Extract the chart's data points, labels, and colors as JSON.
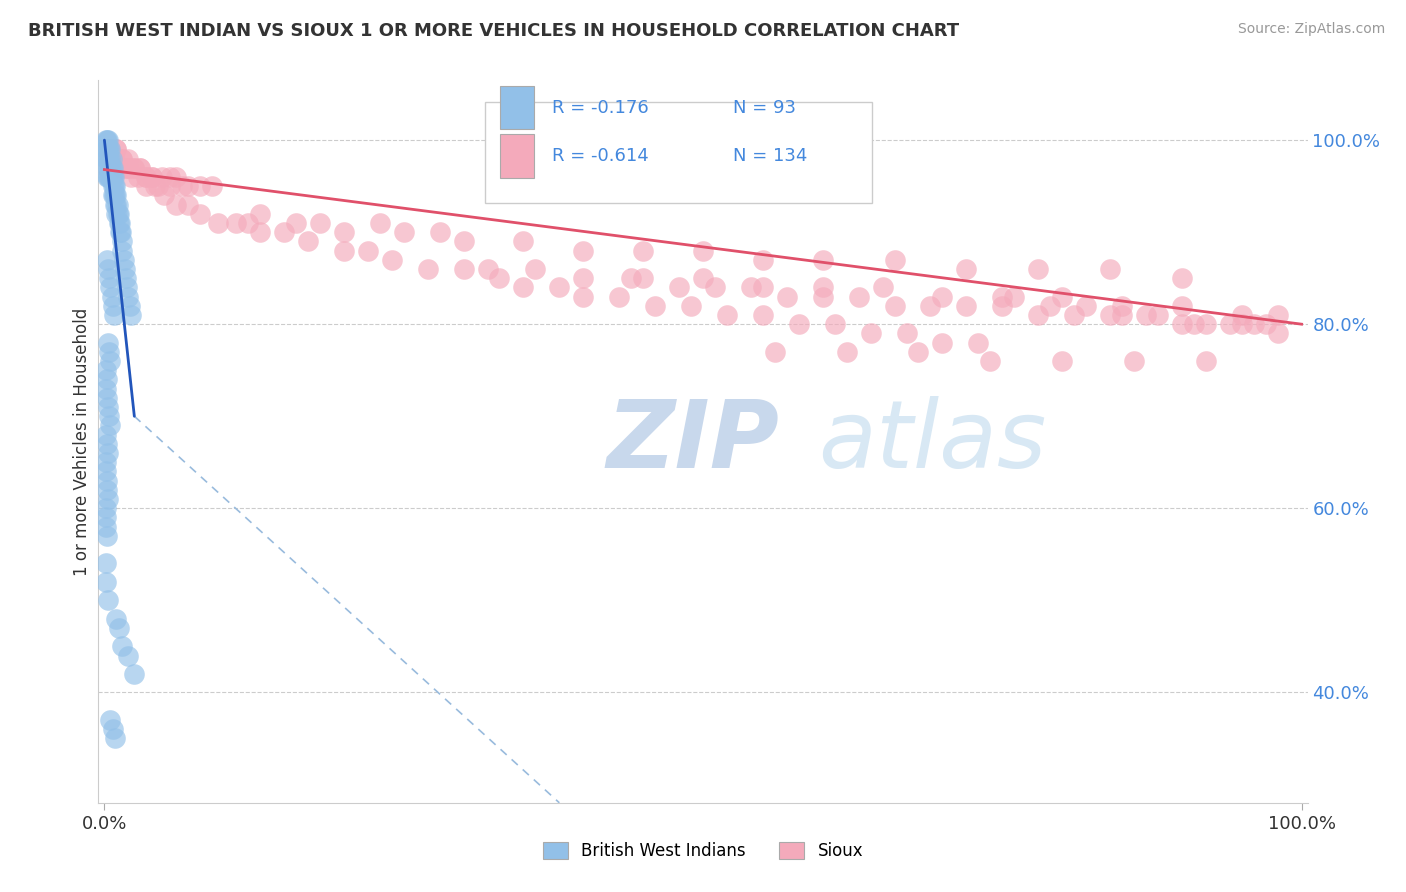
{
  "title": "BRITISH WEST INDIAN VS SIOUX 1 OR MORE VEHICLES IN HOUSEHOLD CORRELATION CHART",
  "source": "Source: ZipAtlas.com",
  "ylabel": "1 or more Vehicles in Household",
  "watermark_zip": "ZIP",
  "watermark_atlas": "atlas",
  "legend_r1": "-0.176",
  "legend_n1": "93",
  "legend_r2": "-0.614",
  "legend_n2": "134",
  "label1": "British West Indians",
  "label2": "Sioux",
  "color1": "#92C0E8",
  "color2": "#F4AABB",
  "line_color1": "#2255BB",
  "line_color2": "#E0506A",
  "dash_color": "#99BBDD",
  "ytick_color": "#4488DD",
  "ytick_vals": [
    0.4,
    0.6,
    0.8,
    1.0
  ],
  "yticks": [
    "40.0%",
    "60.0%",
    "80.0%",
    "100.0%"
  ],
  "xlim": [
    -0.005,
    1.005
  ],
  "ylim": [
    0.28,
    1.065
  ],
  "blue_line_x": [
    0.0,
    0.025
  ],
  "blue_line_y": [
    1.0,
    0.7
  ],
  "dash_line_x": [
    0.025,
    0.38
  ],
  "dash_line_y": [
    0.7,
    0.28
  ],
  "pink_line_x": [
    0.0,
    1.0
  ],
  "pink_line_y": [
    0.968,
    0.8
  ],
  "blue_x": [
    0.001,
    0.001,
    0.001,
    0.002,
    0.002,
    0.002,
    0.002,
    0.002,
    0.003,
    0.003,
    0.003,
    0.003,
    0.003,
    0.004,
    0.004,
    0.004,
    0.004,
    0.005,
    0.005,
    0.005,
    0.005,
    0.006,
    0.006,
    0.006,
    0.007,
    0.007,
    0.007,
    0.007,
    0.008,
    0.008,
    0.008,
    0.009,
    0.009,
    0.009,
    0.01,
    0.01,
    0.01,
    0.011,
    0.011,
    0.012,
    0.012,
    0.013,
    0.013,
    0.014,
    0.015,
    0.015,
    0.016,
    0.017,
    0.018,
    0.019,
    0.02,
    0.021,
    0.022,
    0.002,
    0.003,
    0.004,
    0.005,
    0.006,
    0.007,
    0.008,
    0.003,
    0.004,
    0.005,
    0.001,
    0.002,
    0.001,
    0.002,
    0.003,
    0.004,
    0.005,
    0.001,
    0.002,
    0.003,
    0.001,
    0.001,
    0.002,
    0.002,
    0.003,
    0.001,
    0.001,
    0.001,
    0.002,
    0.001,
    0.001,
    0.003,
    0.01,
    0.012,
    0.015,
    0.02,
    0.025,
    0.005,
    0.007,
    0.009
  ],
  "blue_y": [
    1.0,
    0.99,
    0.98,
    1.0,
    0.99,
    0.98,
    0.97,
    0.96,
    1.0,
    0.99,
    0.98,
    0.97,
    0.96,
    0.99,
    0.98,
    0.97,
    0.96,
    0.99,
    0.98,
    0.97,
    0.96,
    0.98,
    0.97,
    0.96,
    0.97,
    0.96,
    0.95,
    0.94,
    0.96,
    0.95,
    0.94,
    0.95,
    0.94,
    0.93,
    0.94,
    0.93,
    0.92,
    0.93,
    0.92,
    0.92,
    0.91,
    0.91,
    0.9,
    0.9,
    0.89,
    0.88,
    0.87,
    0.86,
    0.85,
    0.84,
    0.83,
    0.82,
    0.81,
    0.87,
    0.86,
    0.85,
    0.84,
    0.83,
    0.82,
    0.81,
    0.78,
    0.77,
    0.76,
    0.75,
    0.74,
    0.73,
    0.72,
    0.71,
    0.7,
    0.69,
    0.68,
    0.67,
    0.66,
    0.65,
    0.64,
    0.63,
    0.62,
    0.61,
    0.6,
    0.59,
    0.58,
    0.57,
    0.54,
    0.52,
    0.5,
    0.48,
    0.47,
    0.45,
    0.44,
    0.42,
    0.37,
    0.36,
    0.35
  ],
  "pink_x": [
    0.005,
    0.008,
    0.015,
    0.02,
    0.025,
    0.03,
    0.035,
    0.04,
    0.048,
    0.055,
    0.06,
    0.065,
    0.07,
    0.08,
    0.09,
    0.005,
    0.01,
    0.015,
    0.02,
    0.025,
    0.03,
    0.035,
    0.04,
    0.045,
    0.055,
    0.01,
    0.015,
    0.02,
    0.008,
    0.012,
    0.018,
    0.022,
    0.028,
    0.035,
    0.042,
    0.05,
    0.06,
    0.07,
    0.08,
    0.095,
    0.11,
    0.13,
    0.15,
    0.17,
    0.2,
    0.22,
    0.24,
    0.27,
    0.3,
    0.33,
    0.35,
    0.38,
    0.4,
    0.43,
    0.46,
    0.49,
    0.52,
    0.55,
    0.58,
    0.61,
    0.64,
    0.67,
    0.7,
    0.73,
    0.76,
    0.79,
    0.82,
    0.85,
    0.88,
    0.91,
    0.94,
    0.96,
    0.98,
    0.32,
    0.36,
    0.4,
    0.44,
    0.48,
    0.51,
    0.54,
    0.57,
    0.6,
    0.63,
    0.66,
    0.69,
    0.72,
    0.75,
    0.78,
    0.81,
    0.84,
    0.87,
    0.9,
    0.92,
    0.95,
    0.97,
    0.45,
    0.5,
    0.55,
    0.6,
    0.65,
    0.7,
    0.75,
    0.8,
    0.85,
    0.9,
    0.95,
    0.98,
    0.12,
    0.16,
    0.2,
    0.25,
    0.3,
    0.35,
    0.4,
    0.45,
    0.5,
    0.55,
    0.6,
    0.66,
    0.72,
    0.78,
    0.84,
    0.9,
    0.56,
    0.62,
    0.68,
    0.74,
    0.8,
    0.86,
    0.92,
    0.13,
    0.18,
    0.23,
    0.28
  ],
  "pink_y": [
    0.98,
    0.98,
    0.97,
    0.97,
    0.97,
    0.97,
    0.96,
    0.96,
    0.96,
    0.96,
    0.96,
    0.95,
    0.95,
    0.95,
    0.95,
    0.99,
    0.99,
    0.98,
    0.98,
    0.97,
    0.97,
    0.96,
    0.96,
    0.95,
    0.95,
    0.99,
    0.98,
    0.97,
    0.98,
    0.97,
    0.97,
    0.96,
    0.96,
    0.95,
    0.95,
    0.94,
    0.93,
    0.93,
    0.92,
    0.91,
    0.91,
    0.9,
    0.9,
    0.89,
    0.88,
    0.88,
    0.87,
    0.86,
    0.86,
    0.85,
    0.84,
    0.84,
    0.83,
    0.83,
    0.82,
    0.82,
    0.81,
    0.81,
    0.8,
    0.8,
    0.79,
    0.79,
    0.78,
    0.78,
    0.83,
    0.82,
    0.82,
    0.81,
    0.81,
    0.8,
    0.8,
    0.8,
    0.79,
    0.86,
    0.86,
    0.85,
    0.85,
    0.84,
    0.84,
    0.84,
    0.83,
    0.83,
    0.83,
    0.82,
    0.82,
    0.82,
    0.82,
    0.81,
    0.81,
    0.81,
    0.81,
    0.8,
    0.8,
    0.8,
    0.8,
    0.85,
    0.85,
    0.84,
    0.84,
    0.84,
    0.83,
    0.83,
    0.83,
    0.82,
    0.82,
    0.81,
    0.81,
    0.91,
    0.91,
    0.9,
    0.9,
    0.89,
    0.89,
    0.88,
    0.88,
    0.88,
    0.87,
    0.87,
    0.87,
    0.86,
    0.86,
    0.86,
    0.85,
    0.77,
    0.77,
    0.77,
    0.76,
    0.76,
    0.76,
    0.76,
    0.92,
    0.91,
    0.91,
    0.9
  ]
}
